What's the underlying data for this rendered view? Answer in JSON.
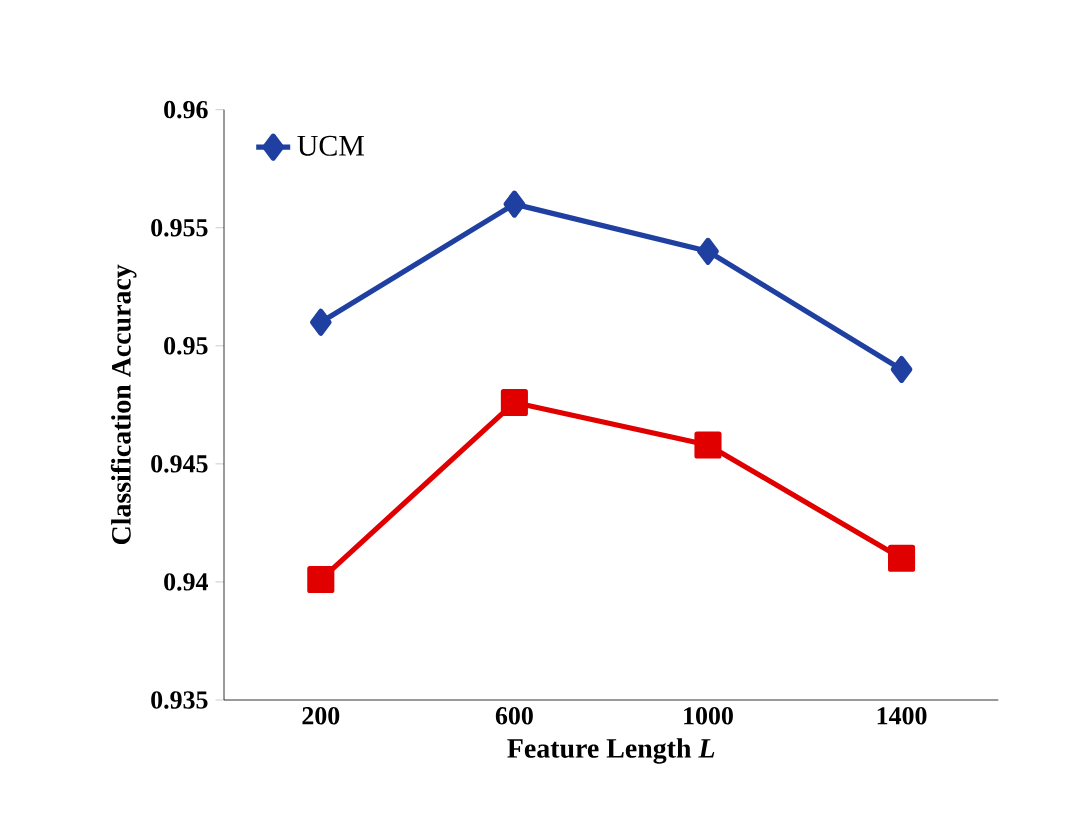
{
  "chart_data": {
    "type": "line",
    "xlabel": "Feature Length *L*",
    "ylabel": "Classification Accuracy",
    "categories": [
      "200",
      "600",
      "1000",
      "1400"
    ],
    "series": [
      {
        "name": "UCM",
        "color": "#1f40a0",
        "marker": "diamond",
        "values": [
          0.951,
          0.956,
          0.954,
          0.949
        ]
      },
      {
        "color": "#e00000",
        "marker": "square",
        "values": [
          0.9401,
          0.9476,
          0.9458,
          0.941
        ]
      }
    ],
    "ylim": [
      0.935,
      0.96
    ],
    "yticks": [
      0.935,
      0.94,
      0.945,
      0.95,
      0.955,
      0.96
    ],
    "grid": false,
    "legend": "top left",
    "line_style": "solid"
  }
}
